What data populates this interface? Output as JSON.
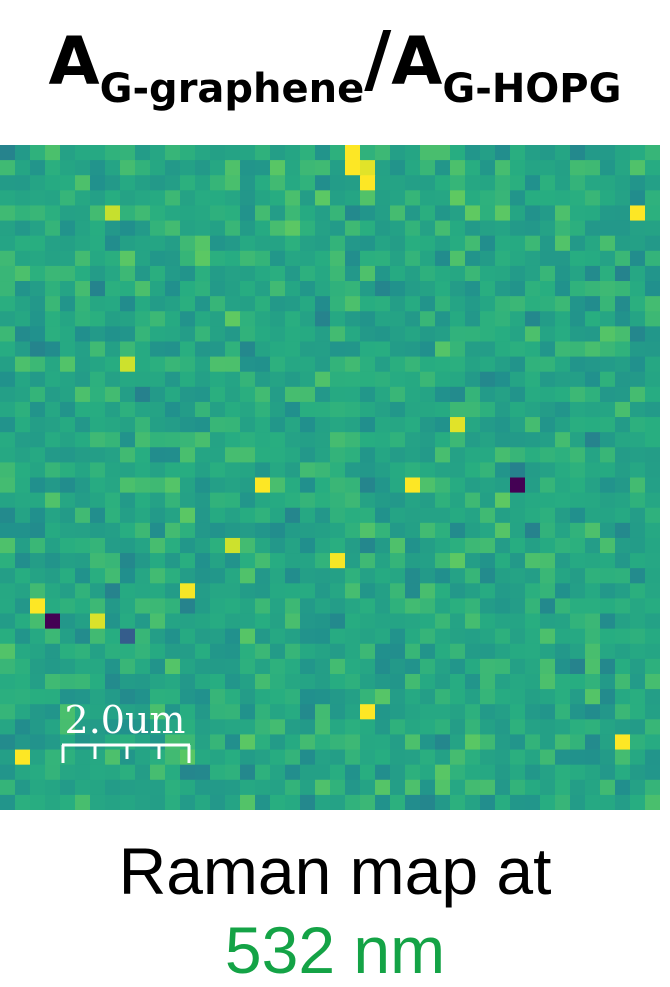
{
  "title": {
    "main": "A",
    "sub1": "G-graphene",
    "slash": "/",
    "main2": "A",
    "sub2": "G-HOPG"
  },
  "caption": {
    "line1": "Raman map at",
    "line2": "532 nm"
  },
  "scale_bar": {
    "label": "2.0um"
  },
  "colors": {
    "caption_accent": "#14a346",
    "colormap": "viridis"
  },
  "chart_data": {
    "type": "heatmap",
    "title": "AG-graphene/AG-HOPG",
    "grid_cols": 44,
    "grid_rows": 44,
    "colormap": "viridis",
    "value_range": [
      0,
      1
    ],
    "typical_value": 0.6,
    "scale_bar_length": "2.0um",
    "outliers": [
      {
        "row": 0,
        "col": 23,
        "value": 1.0
      },
      {
        "row": 1,
        "col": 23,
        "value": 1.0
      },
      {
        "row": 1,
        "col": 24,
        "value": 0.96
      },
      {
        "row": 2,
        "col": 24,
        "value": 1.0
      },
      {
        "row": 4,
        "col": 42,
        "value": 1.0
      },
      {
        "row": 4,
        "col": 7,
        "value": 0.92
      },
      {
        "row": 14,
        "col": 8,
        "value": 0.93
      },
      {
        "row": 18,
        "col": 30,
        "value": 0.96
      },
      {
        "row": 22,
        "col": 17,
        "value": 1.0
      },
      {
        "row": 22,
        "col": 27,
        "value": 1.0
      },
      {
        "row": 22,
        "col": 34,
        "value": 0.0
      },
      {
        "row": 26,
        "col": 15,
        "value": 0.93
      },
      {
        "row": 27,
        "col": 22,
        "value": 0.99
      },
      {
        "row": 29,
        "col": 12,
        "value": 0.99
      },
      {
        "row": 30,
        "col": 2,
        "value": 1.0
      },
      {
        "row": 31,
        "col": 3,
        "value": 0.0
      },
      {
        "row": 31,
        "col": 6,
        "value": 0.95
      },
      {
        "row": 32,
        "col": 8,
        "value": 0.3
      },
      {
        "row": 37,
        "col": 24,
        "value": 1.0
      },
      {
        "row": 39,
        "col": 41,
        "value": 1.0
      },
      {
        "row": 40,
        "col": 1,
        "value": 1.0
      }
    ]
  }
}
